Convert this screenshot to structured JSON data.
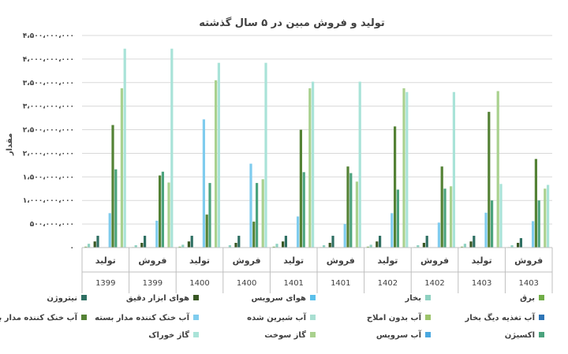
{
  "chart_data": {
    "type": "bar",
    "title": "تولید و فروش مبین در ۵ سال گذشته",
    "ylabel": "مقدار",
    "ylim": [
      0,
      4500000000
    ],
    "yticks": [
      "۰",
      "۵۰۰،۰۰۰،۰۰۰",
      "۱،۰۰۰،۰۰۰،۰۰۰",
      "۱،۵۰۰،۰۰۰،۰۰۰",
      "۲،۰۰۰،۰۰۰،۰۰۰",
      "۲،۵۰۰،۰۰۰،۰۰۰",
      "۳،۰۰۰،۰۰۰،۰۰۰",
      "۳،۵۰۰،۰۰۰،۰۰۰",
      "۴،۰۰۰،۰۰۰،۰۰۰",
      "۴،۵۰۰،۰۰۰،۰۰۰"
    ],
    "grid": true,
    "legend_position": "bottom",
    "categories": [
      {
        "label": "تولید",
        "year": "1399"
      },
      {
        "label": "فروش",
        "year": "1399"
      },
      {
        "label": "تولید",
        "year": "1400"
      },
      {
        "label": "فروش",
        "year": "1400"
      },
      {
        "label": "تولید",
        "year": "1401"
      },
      {
        "label": "فروش",
        "year": "1401"
      },
      {
        "label": "تولید",
        "year": "1402"
      },
      {
        "label": "فروش",
        "year": "1402"
      },
      {
        "label": "تولید",
        "year": "1403"
      },
      {
        "label": "فروش",
        "year": "1403"
      }
    ],
    "series": [
      {
        "name": "برق",
        "color": "#70AD47",
        "values": [
          20000000,
          10000000,
          20000000,
          0,
          20000000,
          10000000,
          20000000,
          10000000,
          20000000,
          10000000
        ]
      },
      {
        "name": "بخار",
        "color": "#8ED1C1",
        "values": [
          80000000,
          50000000,
          60000000,
          50000000,
          80000000,
          50000000,
          60000000,
          50000000,
          80000000,
          50000000
        ]
      },
      {
        "name": "هوای سرویس",
        "color": "#5BC0EB",
        "values": [
          0,
          0,
          0,
          0,
          0,
          0,
          0,
          0,
          0,
          0
        ]
      },
      {
        "name": "هوای ابزار دقیق",
        "color": "#385723",
        "values": [
          130000000,
          100000000,
          130000000,
          100000000,
          130000000,
          100000000,
          130000000,
          100000000,
          130000000,
          100000000
        ]
      },
      {
        "name": "نیتروژن",
        "color": "#2E6F62",
        "values": [
          250000000,
          250000000,
          250000000,
          250000000,
          250000000,
          250000000,
          250000000,
          250000000,
          250000000,
          200000000
        ]
      },
      {
        "name": "آب تغذیه دیگ بخار",
        "color": "#2E75B6",
        "values": [
          0,
          0,
          0,
          0,
          0,
          0,
          0,
          0,
          0,
          0
        ]
      },
      {
        "name": "آب بدون املاح",
        "color": "#9DC46B",
        "values": [
          0,
          0,
          0,
          0,
          0,
          0,
          0,
          0,
          0,
          0
        ]
      },
      {
        "name": "آب شیرین شده",
        "color": "#A9DFD2",
        "values": [
          0,
          0,
          0,
          0,
          0,
          0,
          0,
          0,
          0,
          0
        ]
      },
      {
        "name": "آب خنک کننده مدار بسته",
        "color": "#7FCCEE",
        "values": [
          730000000,
          570000000,
          2720000000,
          1780000000,
          660000000,
          500000000,
          730000000,
          530000000,
          740000000,
          560000000
        ]
      },
      {
        "name": "آب خنک کننده مدار باز",
        "color": "#548235",
        "values": [
          2600000000,
          1530000000,
          700000000,
          550000000,
          2500000000,
          1720000000,
          2570000000,
          1720000000,
          2880000000,
          1880000000
        ]
      },
      {
        "name": "اکسیژن",
        "color": "#4BA37D",
        "values": [
          1660000000,
          1610000000,
          1370000000,
          1370000000,
          1600000000,
          1580000000,
          1230000000,
          1250000000,
          1000000000,
          1000000000
        ]
      },
      {
        "name": "آب سرویس",
        "color": "#4AA8E0",
        "values": [
          0,
          0,
          0,
          0,
          0,
          0,
          0,
          0,
          0,
          0
        ]
      },
      {
        "name": "گاز سوخت",
        "color": "#A9D18E",
        "values": [
          3380000000,
          1380000000,
          3550000000,
          1450000000,
          3380000000,
          1400000000,
          3380000000,
          1300000000,
          3320000000,
          1250000000
        ]
      },
      {
        "name": "گاز خوراک",
        "color": "#A9E3D8",
        "values": [
          4220000000,
          4220000000,
          3920000000,
          3920000000,
          3520000000,
          3520000000,
          3300000000,
          3300000000,
          1350000000,
          1330000000
        ]
      }
    ]
  }
}
